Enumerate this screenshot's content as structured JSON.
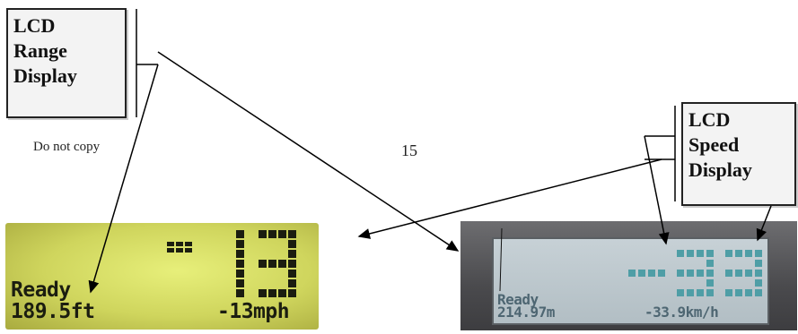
{
  "callouts": {
    "range": [
      "LCD",
      "Range",
      "Display"
    ],
    "speed": [
      "LCD",
      "Speed",
      "Display"
    ]
  },
  "note": "Do not copy",
  "page_number": "15",
  "lcd_range": {
    "status": "Ready",
    "distance": "189.5ft",
    "speed": "-13mph",
    "big_digits": "13"
  },
  "lcd_speed": {
    "status": "Ready",
    "distance": "214.97m",
    "speed": "-33.9km/h",
    "big_digits": "-33"
  },
  "colors": {
    "lcd_range_pixel": "#1b1d10",
    "lcd_speed_pixel": "#4f9ea6",
    "line": "#000000"
  }
}
